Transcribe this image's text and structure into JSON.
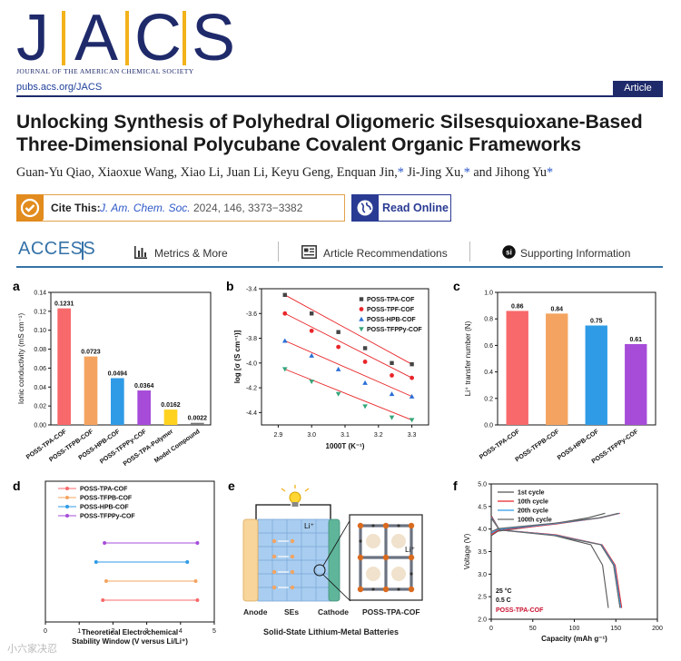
{
  "header": {
    "journal_abbrev": "JACS",
    "journal_name": "JOURNAL OF THE AMERICAN CHEMICAL SOCIETY",
    "url": "pubs.acs.org/JACS",
    "article_type": "Article"
  },
  "title": "Unlocking Synthesis of Polyhedral Oligomeric Silsesquioxane-Based Three-Dimensional Polycubane Covalent Organic Frameworks",
  "authors": "Guan-Yu Qiao, Xiaoxue Wang, Xiao Li, Juan Li, Keyu Geng, Enquan Jin,",
  "authors_tail_1": " Ji-Jing Xu,",
  "authors_tail_2": " and Jihong Yu",
  "author_mark": "*",
  "cite": {
    "label": "Cite This:",
    "journal": "J. Am. Chem. Soc.",
    "details": "2024, 146, 3373−3382"
  },
  "read_online": "Read Online",
  "access_label": "ACCESS",
  "menu": {
    "metrics": "Metrics & More",
    "recommendations": "Article Recommendations",
    "supporting": "Supporting Information"
  },
  "colors": {
    "navy": "#1f2a6b",
    "accent_orange": "#e28b1e",
    "access_blue": "#3572a8"
  },
  "panels": {
    "a": "a",
    "b": "b",
    "c": "c",
    "d": "d",
    "e": "e",
    "f": "f"
  },
  "chart_data": [
    {
      "panel": "a",
      "type": "bar",
      "ylabel": "Ionic conductivity (mS cm⁻¹)",
      "ylim": [
        0,
        0.14
      ],
      "yticks": [
        "0.00",
        "0.02",
        "0.04",
        "0.06",
        "0.08",
        "0.10",
        "0.12",
        "0.14"
      ],
      "categories": [
        "POSS-TPA-COF",
        "POSS-TFPB-COF",
        "POSS-HPB-COF",
        "POSS-TFPPy-COF",
        "POSS-TPA-Polymer",
        "Model Compound"
      ],
      "values": [
        0.1231,
        0.0723,
        0.0494,
        0.0364,
        0.0162,
        0.0022
      ],
      "value_labels": [
        "0.1231",
        "0.0723",
        "0.0494",
        "0.0364",
        "0.0162",
        "0.0022"
      ],
      "colors": [
        "#f8696b",
        "#f4a460",
        "#2f9be6",
        "#a64cd9",
        "#ffd21f",
        "#777777"
      ]
    },
    {
      "panel": "b",
      "type": "scatter",
      "ylabel": "log [σ (S cm⁻¹)]",
      "xlabel": "1000T (K⁻¹)",
      "xlim": [
        2.85,
        3.35
      ],
      "ylim": [
        -4.5,
        -3.4
      ],
      "xticks": [
        "2.9",
        "3.0",
        "3.1",
        "3.2",
        "3.3"
      ],
      "yticks": [
        "-3.4",
        "-3.6",
        "-3.8",
        "-4.0",
        "-4.2",
        "-4.4"
      ],
      "x": [
        2.92,
        3.0,
        3.08,
        3.16,
        3.24,
        3.3
      ],
      "series": [
        {
          "name": "POSS-TPA-COF",
          "marker": "square",
          "color": "#444444",
          "values": [
            -3.45,
            -3.6,
            -3.75,
            -3.88,
            -4.0,
            -4.01
          ]
        },
        {
          "name": "POSS-TPF-COF",
          "marker": "circle",
          "color": "#e8262a",
          "values": [
            -3.6,
            -3.74,
            -3.87,
            -3.99,
            -4.1,
            -4.12
          ]
        },
        {
          "name": "POSS-HPB-COF",
          "marker": "triangle-up",
          "color": "#2b6fd6",
          "values": [
            -3.82,
            -3.94,
            -4.05,
            -4.16,
            -4.25,
            -4.27
          ]
        },
        {
          "name": "POSS-TFPPy-COF",
          "marker": "triangle-down",
          "color": "#35a67a",
          "values": [
            -4.05,
            -4.15,
            -4.25,
            -4.35,
            -4.44,
            -4.46
          ]
        }
      ]
    },
    {
      "panel": "c",
      "type": "bar",
      "ylabel": "Li⁺ transfer number (N)",
      "ylim": [
        0,
        1.0
      ],
      "yticks": [
        "0.0",
        "0.2",
        "0.4",
        "0.6",
        "0.8",
        "1.0"
      ],
      "categories": [
        "POSS-TPA-COF",
        "POSS-TFPB-COF",
        "POSS-HPB-COF",
        "POSS-TFPPy-COF"
      ],
      "values": [
        0.86,
        0.84,
        0.75,
        0.61
      ],
      "value_labels": [
        "0.86",
        "0.84",
        "0.75",
        "0.61"
      ],
      "colors": [
        "#f8696b",
        "#f4a460",
        "#2f9be6",
        "#a64cd9"
      ]
    },
    {
      "panel": "d",
      "type": "line",
      "xlabel": "Theoretical Electrochemical Stability Window (V versus Li/Li⁺)",
      "xlim": [
        0,
        5
      ],
      "xticks": [
        "0",
        "1",
        "2",
        "3",
        "4",
        "5"
      ],
      "series": [
        {
          "name": "POSS-TPA-COF",
          "color": "#f8696b",
          "range": [
            1.7,
            4.5
          ]
        },
        {
          "name": "POSS-TFPB-COF",
          "color": "#f4a460",
          "range": [
            1.8,
            4.45
          ]
        },
        {
          "name": "POSS-HPB-COF",
          "color": "#2f9be6",
          "range": [
            1.5,
            4.2
          ]
        },
        {
          "name": "POSS-TFPPy-COF",
          "color": "#a64cd9",
          "range": [
            1.75,
            4.5
          ]
        }
      ]
    },
    {
      "panel": "f",
      "type": "line",
      "xlabel": "Capacity (mAh g⁻¹)",
      "ylabel": "Voltage (V)",
      "xlim": [
        0,
        200
      ],
      "ylim": [
        2.0,
        5.0
      ],
      "xticks": [
        "0",
        "50",
        "100",
        "150",
        "200"
      ],
      "yticks": [
        "2.0",
        "2.5",
        "3.0",
        "3.5",
        "4.0",
        "4.5",
        "5.0"
      ],
      "annotations": [
        "25 °C",
        "0.5 C",
        "POSS-TPA-COF"
      ],
      "series": [
        {
          "name": "1st cycle",
          "color": "#555555",
          "charge_end": 137,
          "discharge_end": 141
        },
        {
          "name": "10th cycle",
          "color": "#e8262a",
          "charge_end": 155,
          "discharge_end": 157
        },
        {
          "name": "20th cycle",
          "color": "#2f9be6",
          "charge_end": 154,
          "discharge_end": 156
        },
        {
          "name": "100th cycle",
          "color": "#666666",
          "charge_end": 153,
          "discharge_end": 155
        }
      ]
    }
  ],
  "schematic_e": {
    "labels": {
      "anode": "Anode",
      "ses": "SEs",
      "cathode": "Cathode",
      "cof": "POSS-TPA-COF",
      "li_plus": "Li⁺",
      "caption": "Solid-State Lithium-Metal Batteries"
    }
  },
  "watermark": "小六家决忍"
}
